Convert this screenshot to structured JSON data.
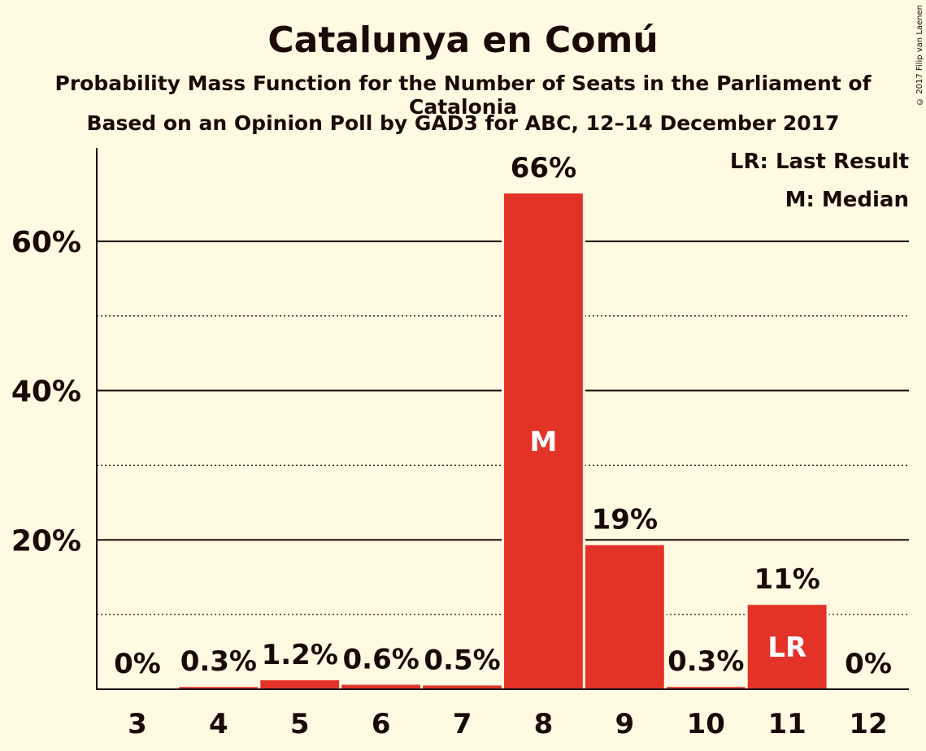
{
  "title": "Catalunya en Comú",
  "subtitle1": "Probability Mass Function for the Number of Seats in the Parliament of Catalonia",
  "subtitle2": "Based on an Opinion Poll by GAD3 for ABC, 12–14 December 2017",
  "copyright": "© 2017 Filip van Laenen",
  "legend": {
    "last_result": "LR: Last Result",
    "median": "M: Median"
  },
  "colors": {
    "bar": "#e33328",
    "background": "#fffae1",
    "text": "#1a0a06"
  },
  "chart_data": {
    "type": "bar",
    "categories": [
      "3",
      "4",
      "5",
      "6",
      "7",
      "8",
      "9",
      "10",
      "11",
      "12"
    ],
    "values": [
      0,
      0.3,
      1.2,
      0.6,
      0.5,
      66.4,
      19.3,
      0.3,
      11.3,
      0
    ],
    "data_labels": [
      "0%",
      "0.3%",
      "1.2%",
      "0.6%",
      "0.5%",
      "66%",
      "19%",
      "0.3%",
      "11%",
      "0%"
    ],
    "inner_labels": {
      "8": "M",
      "11": "LR"
    },
    "ylim": [
      0,
      72.5
    ],
    "yticks": [
      20,
      40,
      60
    ],
    "ytick_labels": [
      "20%",
      "40%",
      "60%"
    ],
    "minor_gridlines": [
      10,
      30,
      50
    ],
    "grid": true,
    "xlabel": "",
    "ylabel": ""
  }
}
